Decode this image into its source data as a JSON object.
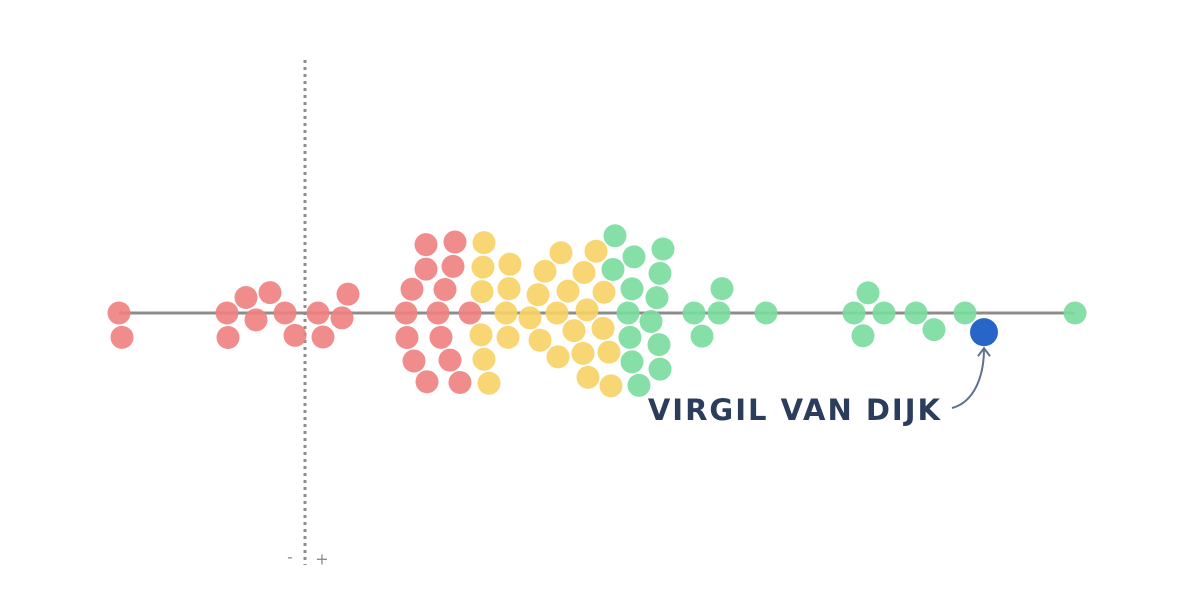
{
  "chart_data": {
    "type": "beeswarm",
    "xlim": [
      -10,
      40
    ],
    "zero_line": 0,
    "zero_labels": [
      "-",
      "+"
    ],
    "series": [
      {
        "color": "#f07f80",
        "values": [
          -9.15,
          -9.3,
          -3.9,
          -2.45,
          -1.75,
          -2.95,
          -3.85,
          -1.0,
          -0.5,
          0.9,
          0.65,
          2.15,
          1.85,
          5.05,
          6.65,
          7.5,
          6.05,
          5.35,
          7.25,
          6.1,
          7.75,
          5.45,
          7.0,
          5.1,
          6.8,
          6.05,
          8.25,
          7.4
        ]
      },
      {
        "color": "#f6d264",
        "values": [
          8.8,
          10.15,
          8.85,
          10.2,
          8.95,
          9.2,
          10.25,
          8.9,
          10.05,
          8.95,
          12.0,
          12.6,
          11.25,
          12.65,
          11.65,
          13.45,
          11.75,
          13.15,
          12.8,
          14.1,
          14.95,
          14.15,
          13.95,
          13.9,
          15.3,
          15.2,
          14.55,
          14.9
        ]
      },
      {
        "color": "#7adc9e",
        "values": [
          17.3,
          15.5,
          16.7,
          15.4,
          17.9,
          16.45,
          17.75,
          16.35,
          17.7,
          16.25,
          17.6,
          16.35,
          17.75,
          16.15,
          19.45,
          20.85,
          20.7,
          19.85,
          23.05,
          27.45,
          28.95,
          27.9,
          28.15,
          30.55,
          31.45,
          33.0,
          38.5
        ]
      }
    ],
    "highlight": {
      "label": "VIRGIL VAN DIJK",
      "value": 33.95,
      "color": "#2766c6"
    }
  }
}
